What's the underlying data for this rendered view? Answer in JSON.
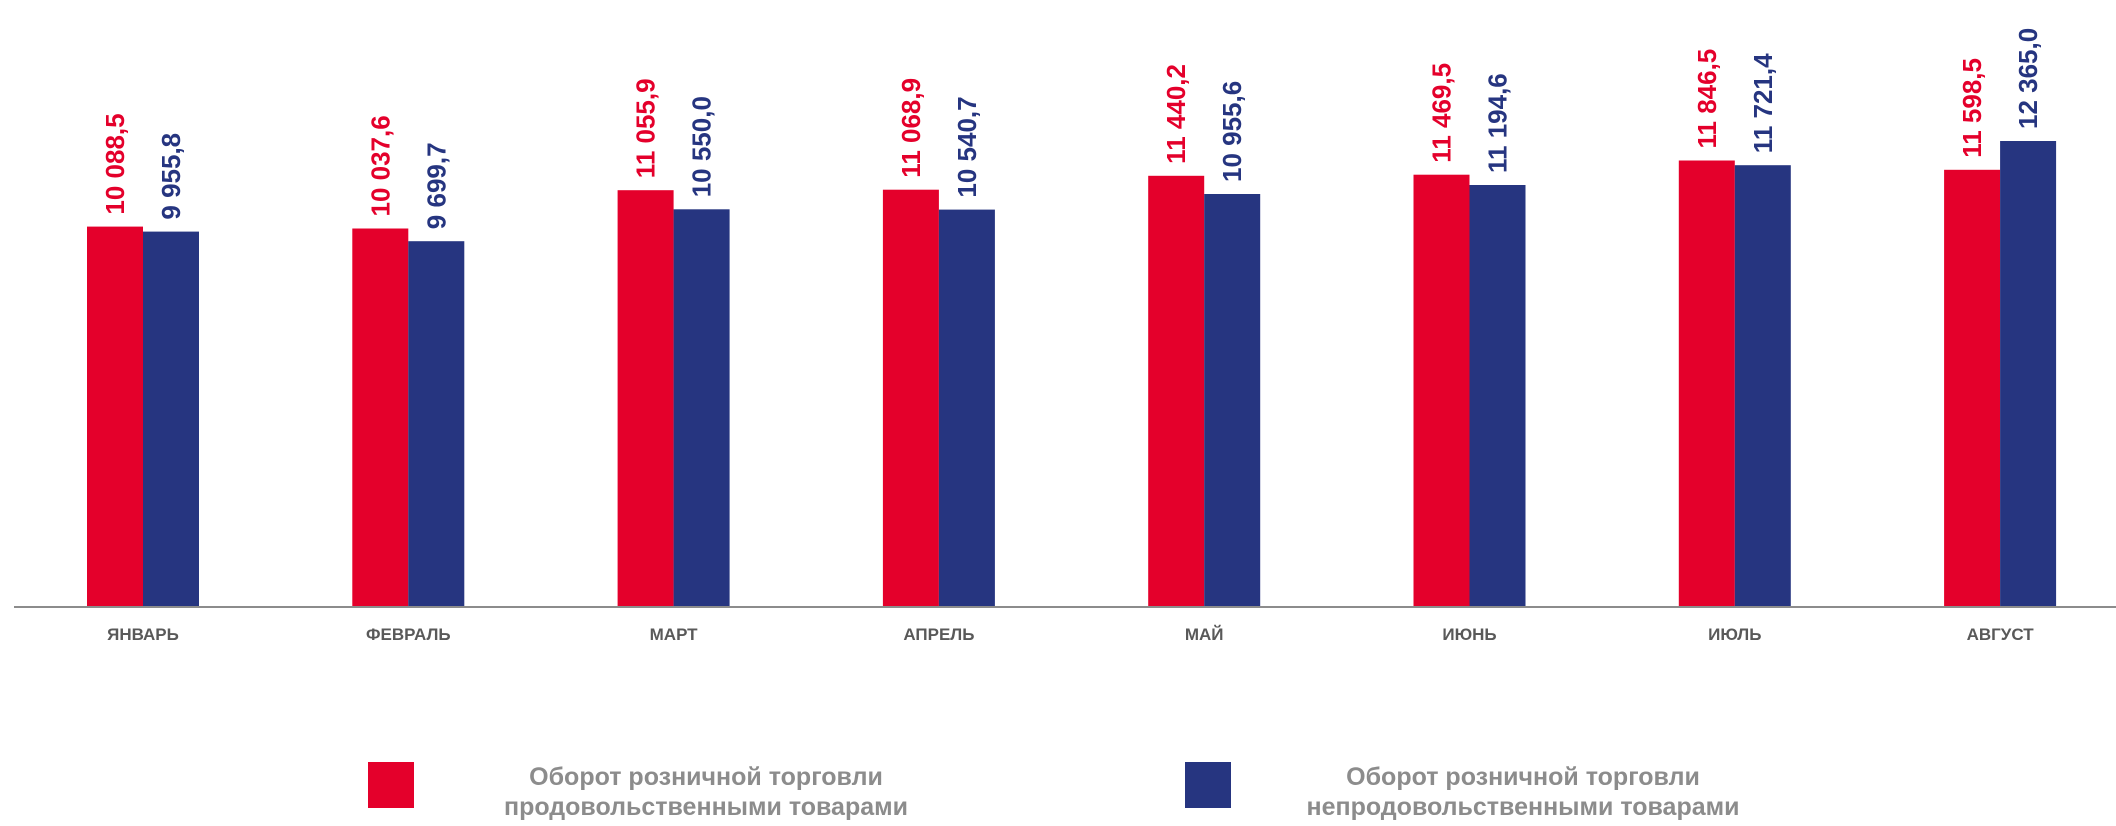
{
  "chart_data": {
    "type": "bar",
    "categories": [
      "ЯНВАРЬ",
      "ФЕВРАЛЬ",
      "МАРТ",
      "АПРЕЛЬ",
      "МАЙ",
      "ИЮНЬ",
      "ИЮЛЬ",
      "АВГУСТ"
    ],
    "series": [
      {
        "name": "Оборот розничной торговли продовольственными товарами",
        "legend_lines": [
          "Оборот розничной торговли",
          "продовольственными товарами"
        ],
        "color": "#e4002b",
        "values": [
          10088.5,
          10037.6,
          11055.9,
          11068.9,
          11440.2,
          11469.5,
          11846.5,
          11598.5
        ],
        "labels": [
          "10 088,5",
          "10 037,6",
          "11 055,9",
          "11 068,9",
          "11 440,2",
          "11 469,5",
          "11 846,5",
          "11 598,5"
        ]
      },
      {
        "name": "Оборот розничной торговли непродовольственными товарами",
        "legend_lines": [
          "Оборот розничной торговли",
          "непродовольственными товарами"
        ],
        "color": "#263580",
        "values": [
          9955.8,
          9699.7,
          10550.0,
          10540.7,
          10955.6,
          11194.6,
          11721.4,
          12365.0
        ],
        "labels": [
          "9 955,8",
          "9 699,7",
          "10 550,0",
          "10 540,7",
          "10 955,6",
          "11 194,6",
          "11 721,4",
          "12 365,0"
        ]
      }
    ],
    "ylim": [
      0,
      12365.0
    ],
    "grid": false,
    "legend_position": "bottom",
    "axis_color": "#8c8c8c",
    "category_label_color": "#595959"
  }
}
